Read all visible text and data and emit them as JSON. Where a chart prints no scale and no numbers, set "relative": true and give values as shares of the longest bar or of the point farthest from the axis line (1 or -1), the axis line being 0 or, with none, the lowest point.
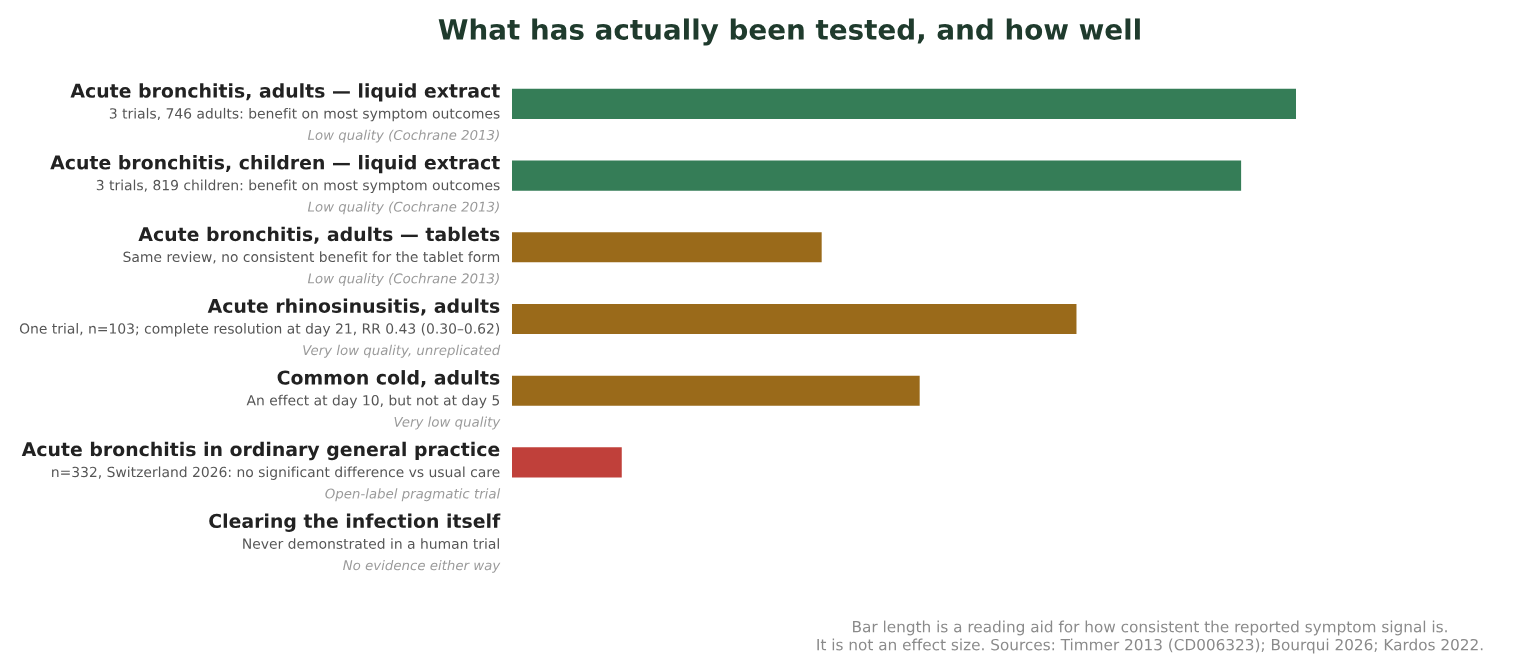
{
  "chart_data": {
    "type": "bar",
    "orientation": "horizontal",
    "relative": true,
    "title": "What has actually been tested, and how well",
    "categories": [
      "Acute bronchitis, adults — liquid extract\n3 trials, 746 adults: benefit on most symptom outcomes\nLow quality (Cochrane 2013)",
      "Acute bronchitis, children — liquid extract\n3 trials, 819 children: benefit on most symptom outcomes\nLow quality (Cochrane 2013)",
      "Acute bronchitis, adults — tablets\nSame review, no consistent benefit for the tablet form\nLow quality (Cochrane 2013)",
      "Acute rhinosinusitis, adults\nOne trial, n=103; complete resolution at day 21, RR 0.43 (0.30–0.62)\nVery low quality, unreplicated",
      "Common cold, adults\nAn effect at day 10, but not at day 5\nVery low quality",
      "Acute bronchitis in ordinary general practice\nn=332, Switzerland 2026: no significant difference vs usual care\nOpen-label pragmatic trial",
      "Clearing the infection itself\nNever demonstrated in a human trial\nNo evidence either way"
    ],
    "values": [
      1,
      0.93,
      0.395,
      0.72,
      0.52,
      0.14,
      0
    ],
    "colors": [
      "#357d57",
      "#357d57",
      "#9a6a1a",
      "#9a6a1a",
      "#9a6a1a",
      "#c0403a",
      "#999999"
    ],
    "annotations": [
      "Bar length is a reading aid for how consistent the reported symptom signal is.",
      "It is not an effect size. Sources: Timmer 2013 (CD006323); Bourqui 2026; Kardos 2022."
    ]
  }
}
